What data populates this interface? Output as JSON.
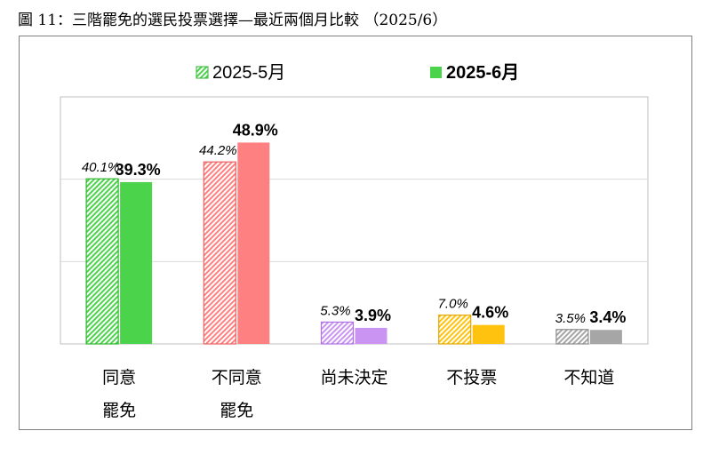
{
  "title": "圖 11：三階罷免的選民投票選擇—最近兩個月比較 （2025/6）",
  "chart_data": {
    "type": "bar",
    "title": "圖 11：三階罷免的選民投票選擇—最近兩個月比較 （2025/6）",
    "categories": [
      [
        "同意",
        "罷免"
      ],
      [
        "不同意",
        "罷免"
      ],
      [
        "尚未決定"
      ],
      [
        "不投票"
      ],
      [
        "不知道"
      ]
    ],
    "series": [
      {
        "name": "2025-5月",
        "values": [
          40.1,
          44.2,
          5.3,
          7.0,
          3.5
        ],
        "labels": [
          "40.1%",
          "44.2%",
          "5.3%",
          "7.0%",
          "3.5%"
        ],
        "style": "hatched"
      },
      {
        "name": "2025-6月",
        "values": [
          39.3,
          48.9,
          3.9,
          4.6,
          3.4
        ],
        "labels": [
          "39.3%",
          "48.9%",
          "3.9%",
          "4.6%",
          "3.4%"
        ],
        "style": "solid"
      }
    ],
    "category_colors": [
      "#4cd34c",
      "#ff8080",
      "#c994f2",
      "#ffc20e",
      "#a6a6a6"
    ],
    "category_stroke_colors": [
      "#2fb52f",
      "#e96262",
      "#b071e6",
      "#e0a800",
      "#8c8c8c"
    ],
    "legend_colors": [
      "#4cd34c",
      "#4cd34c"
    ],
    "ylim": [
      0,
      60
    ],
    "grid": true,
    "legend_position": "top-center"
  }
}
